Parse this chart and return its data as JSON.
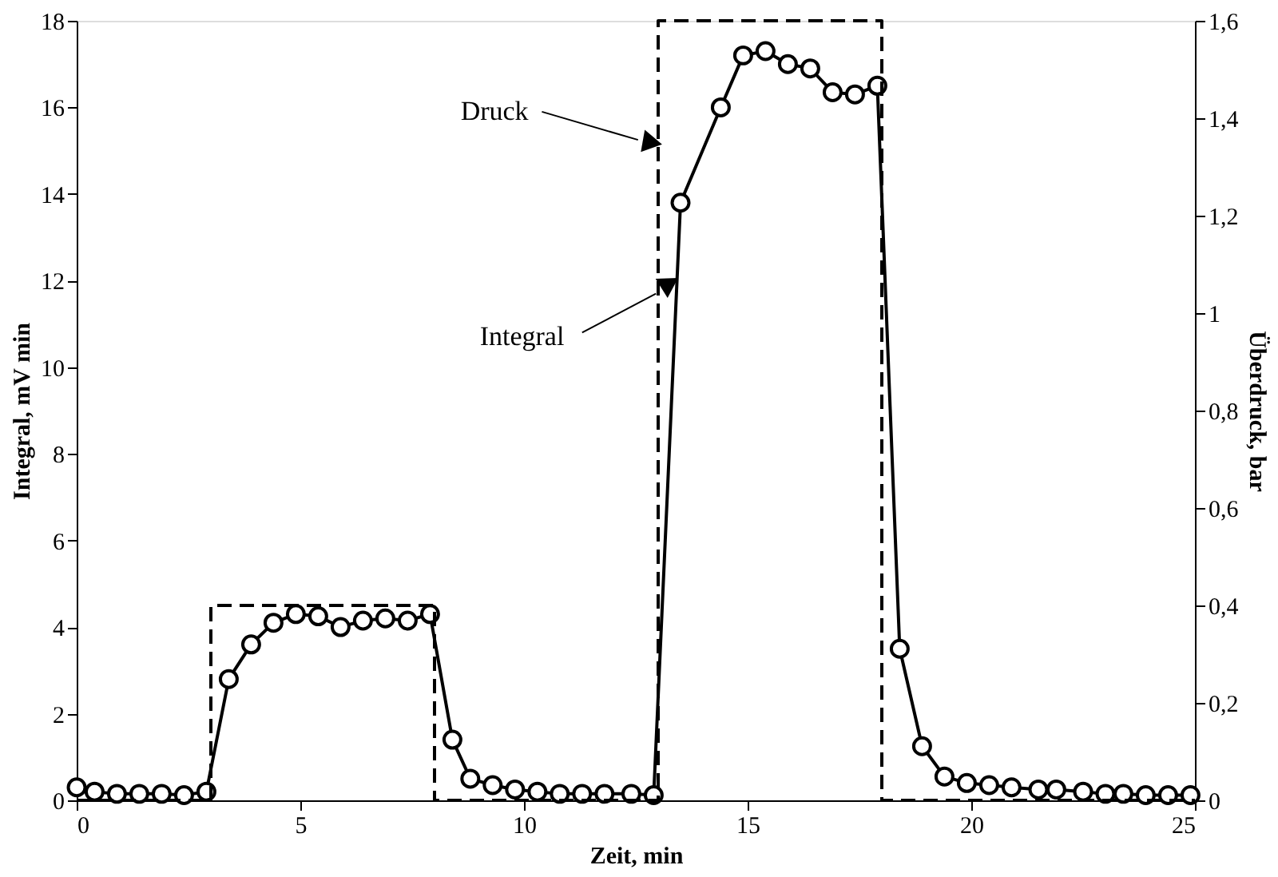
{
  "chart_data": {
    "type": "line",
    "xlabel": "Zeit, min",
    "ylabel": "Integral, mV min",
    "y2label": "Überdruck, bar",
    "xlim": [
      0,
      25
    ],
    "xticks": [
      0,
      5,
      10,
      15,
      20,
      25
    ],
    "ylim": [
      0,
      18
    ],
    "yticks": [
      0,
      2,
      4,
      6,
      8,
      10,
      12,
      14,
      16,
      18
    ],
    "y2lim": [
      0,
      1.6
    ],
    "y2ticks": [
      0,
      {
        "value": 0.2,
        "label": "0,2"
      },
      {
        "value": 0.4,
        "label": "0,4"
      },
      {
        "value": 0.6,
        "label": "0,6"
      },
      {
        "value": 0.8,
        "label": "0,8"
      },
      1,
      {
        "value": 1.2,
        "label": "1,2"
      },
      {
        "value": 1.4,
        "label": "1,4"
      },
      {
        "value": 1.6,
        "label": "1,6"
      }
    ],
    "grid": false,
    "legend": false,
    "series": [
      {
        "color": "#000000",
        "marker": "circle",
        "line_style": "solid",
        "x": [
          0,
          0.4,
          0.9,
          1.4,
          1.9,
          2.4,
          2.9,
          3.4,
          3.9,
          4.4,
          4.9,
          5.4,
          5.9,
          6.4,
          6.9,
          7.4,
          7.9,
          8.4,
          8.8,
          9.3,
          9.8,
          10.3,
          10.8,
          11.3,
          11.8,
          12.4,
          12.9,
          13.5,
          14.4,
          14.9,
          15.4,
          15.9,
          16.4,
          16.9,
          17.4,
          17.9,
          18.4,
          18.9,
          19.4,
          19.9,
          20.4,
          20.9,
          21.5,
          21.9,
          22.5,
          23.0,
          23.4,
          23.9,
          24.4,
          24.9
        ],
        "values": [
          0.3,
          0.2,
          0.15,
          0.15,
          0.15,
          0.12,
          0.2,
          2.8,
          3.6,
          4.1,
          4.3,
          4.25,
          4.0,
          4.15,
          4.2,
          4.15,
          4.3,
          1.4,
          0.5,
          0.35,
          0.25,
          0.2,
          0.15,
          0.15,
          0.15,
          0.15,
          0.12,
          13.8,
          16.0,
          17.2,
          17.3,
          17.0,
          16.9,
          16.35,
          16.3,
          16.5,
          3.5,
          1.25,
          0.55,
          0.4,
          0.35,
          0.3,
          0.25,
          0.25,
          0.2,
          0.15,
          0.15,
          0.12,
          0.12,
          0.12
        ]
      },
      {
        "color": "#000000",
        "marker": "none",
        "line_style": "dashed",
        "axis": "y2",
        "x": [
          0,
          3,
          3,
          8,
          8,
          13,
          13,
          18,
          18,
          25
        ],
        "values": [
          0,
          0,
          0.4,
          0.4,
          0,
          0,
          1.6,
          1.6,
          0,
          0
        ]
      }
    ],
    "annotations": [
      {
        "text": "Druck",
        "x": 12.8,
        "y": 15.2
      },
      {
        "text": "Integral",
        "x": 13.2,
        "y": 11.9
      }
    ]
  }
}
